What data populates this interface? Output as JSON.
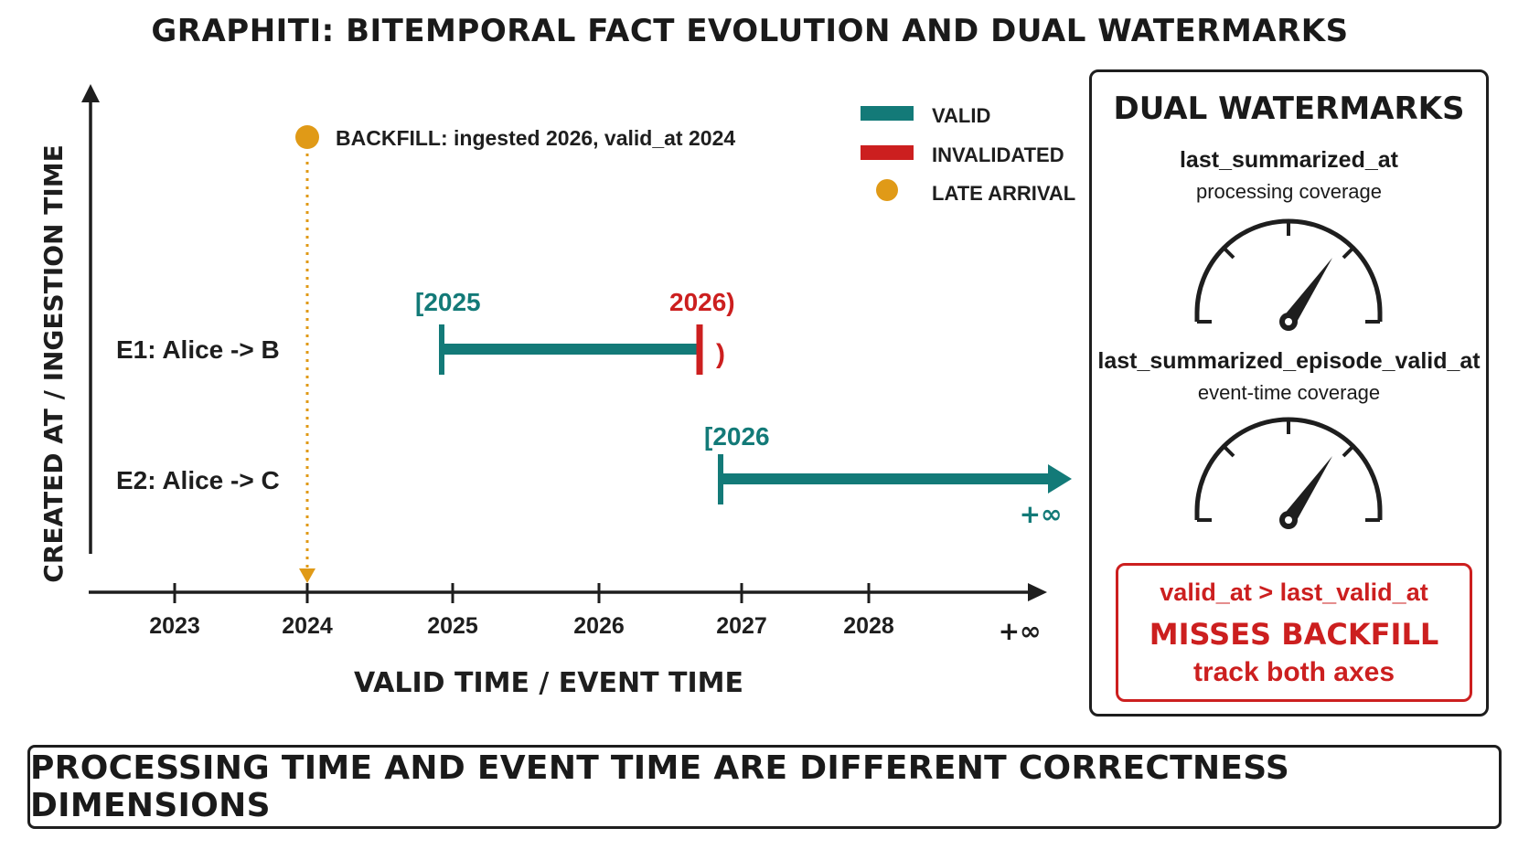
{
  "title": "GRAPHITI: BITEMPORAL FACT EVOLUTION AND DUAL WATERMARKS",
  "colors": {
    "valid": "#137a78",
    "invalidated": "#cc1f1f",
    "late_arrival": "#e09a17",
    "ink": "#1e1e1e"
  },
  "axes": {
    "y_label": "CREATED AT / INGESTION TIME",
    "x_label": "VALID TIME / EVENT TIME",
    "x_ticks": [
      "2023",
      "2024",
      "2025",
      "2026",
      "2027",
      "2028",
      "+∞"
    ]
  },
  "legend": [
    {
      "label": "VALID",
      "kind": "valid"
    },
    {
      "label": "INVALIDATED",
      "kind": "invalidated"
    },
    {
      "label": "LATE ARRIVAL",
      "kind": "late_arrival"
    }
  ],
  "backfill": {
    "label": "BACKFILL: ingested 2026, valid_at 2024",
    "valid_at": 2024,
    "ingested": 2026
  },
  "edges": [
    {
      "label": "E1: Alice -> B",
      "start": 2025,
      "end": 2026.7,
      "start_label": "[2025",
      "end_label": "2026)",
      "close_bracket": ")",
      "status": "invalidated"
    },
    {
      "label": "E2: Alice -> C",
      "start": 2026.85,
      "end": null,
      "start_label": "[2026",
      "end_label": "+∞",
      "status": "valid"
    }
  ],
  "panel": {
    "title": "DUAL WATERMARKS",
    "watermarks": [
      {
        "name": "last_summarized_at",
        "desc": "processing coverage"
      },
      {
        "name": "last_summarized_episode_valid_at",
        "desc": "event-time coverage"
      }
    ],
    "alert": {
      "line1": "valid_at > last_valid_at",
      "line2": "MISSES BACKFILL",
      "line3": "track both axes"
    }
  },
  "footer": "PROCESSING TIME AND EVENT TIME ARE DIFFERENT CORRECTNESS DIMENSIONS"
}
